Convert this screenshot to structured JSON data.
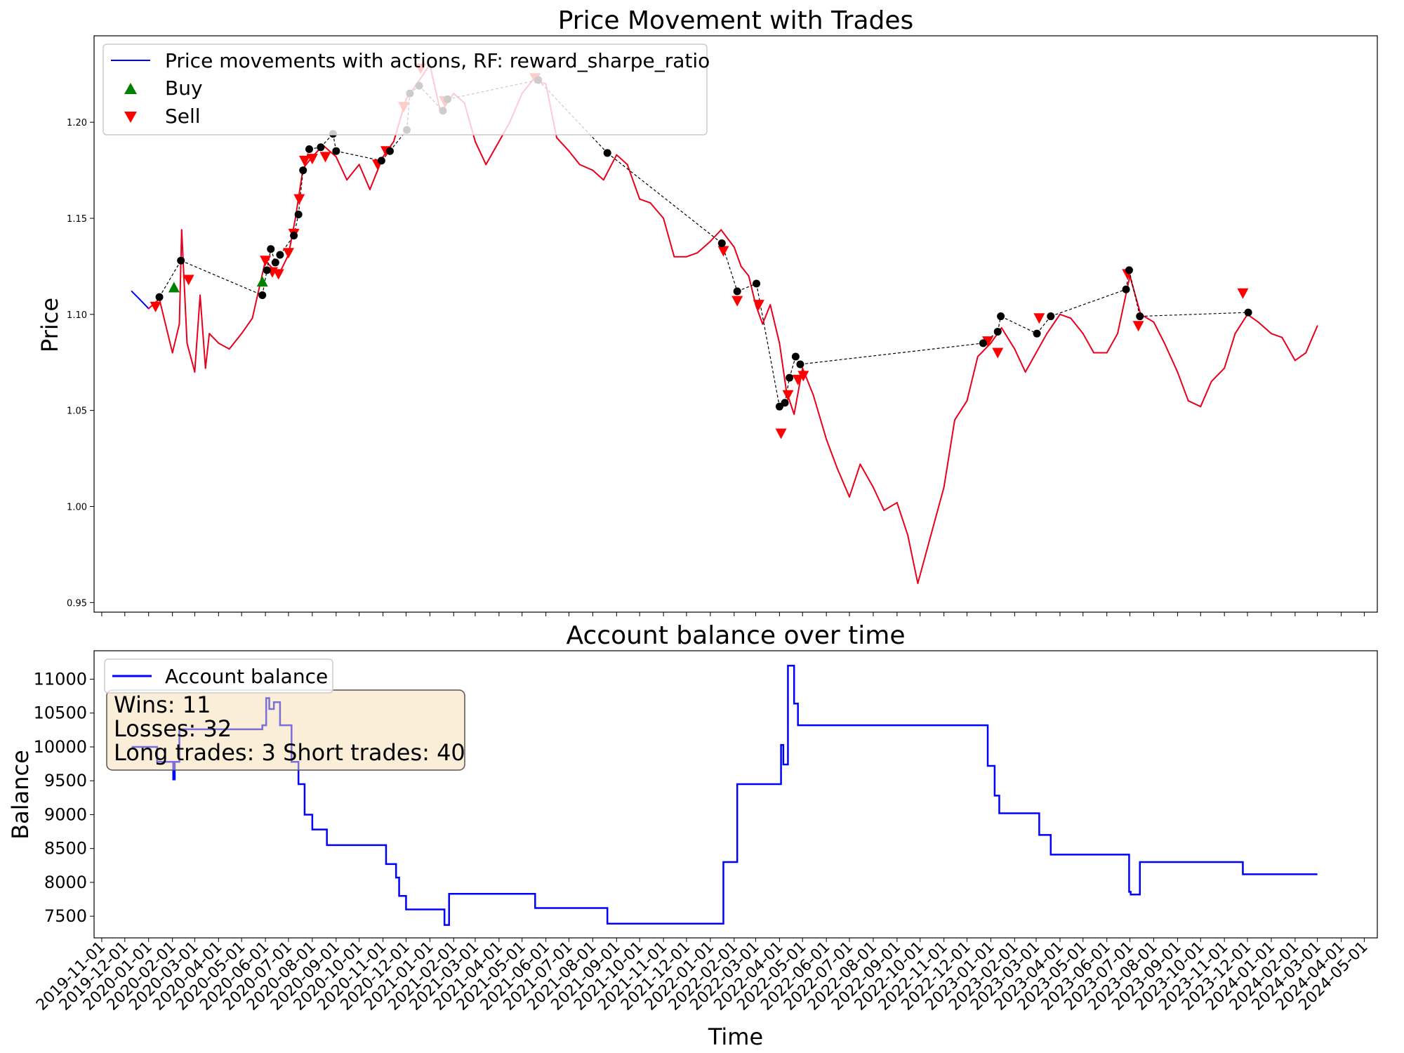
{
  "chart_data": [
    {
      "type": "line",
      "title": "Price Movement with Trades",
      "xlabel": "",
      "ylabel": "Price",
      "ylim": [
        0.945,
        1.245
      ],
      "yticks": [
        "0.95",
        "1.00",
        "1.05",
        "1.10",
        "1.15",
        "1.20"
      ],
      "xlim": [
        "2019-10-22",
        "2024-05-18"
      ],
      "legend": {
        "placement": "top-left",
        "entries": [
          "Price movements with actions, RF: reward_sharpe_ratio",
          "Buy",
          "Sell"
        ]
      },
      "colors": {
        "price_hold": "#0000ff",
        "price_action": "#e8001c",
        "buy": "#008000",
        "sell": "#ff0000",
        "exit": "#000000",
        "trade_link": "#000000"
      },
      "series": [
        {
          "name": "Price movements with actions, RF: reward_sharpe_ratio",
          "x": [
            "2019-12-10",
            "2019-12-20",
            "2020-01-01",
            "2020-01-15",
            "2020-02-01",
            "2020-02-10",
            "2020-02-13",
            "2020-02-20",
            "2020-03-01",
            "2020-03-08",
            "2020-03-15",
            "2020-03-20",
            "2020-04-01",
            "2020-04-15",
            "2020-05-01",
            "2020-05-15",
            "2020-06-01",
            "2020-06-10",
            "2020-06-20",
            "2020-07-01",
            "2020-07-10",
            "2020-07-20",
            "2020-08-01",
            "2020-08-15",
            "2020-09-01",
            "2020-09-15",
            "2020-10-01",
            "2020-10-15",
            "2020-11-01",
            "2020-11-15",
            "2020-12-01",
            "2020-12-15",
            "2021-01-01",
            "2021-01-15",
            "2021-02-01",
            "2021-02-15",
            "2021-03-01",
            "2021-03-15",
            "2021-04-01",
            "2021-04-15",
            "2021-05-01",
            "2021-05-15",
            "2021-06-01",
            "2021-06-15",
            "2021-07-01",
            "2021-07-15",
            "2021-08-01",
            "2021-08-15",
            "2021-09-01",
            "2021-09-15",
            "2021-10-01",
            "2021-10-15",
            "2021-11-01",
            "2021-11-15",
            "2021-12-01",
            "2021-12-15",
            "2022-01-01",
            "2022-01-15",
            "2022-02-01",
            "2022-02-10",
            "2022-02-20",
            "2022-03-01",
            "2022-03-10",
            "2022-03-20",
            "2022-04-01",
            "2022-04-10",
            "2022-04-20",
            "2022-05-01",
            "2022-05-15",
            "2022-06-01",
            "2022-06-15",
            "2022-07-01",
            "2022-07-15",
            "2022-08-01",
            "2022-08-15",
            "2022-09-01",
            "2022-09-15",
            "2022-09-28",
            "2022-10-15",
            "2022-11-01",
            "2022-11-15",
            "2022-12-01",
            "2022-12-15",
            "2023-01-01",
            "2023-01-15",
            "2023-02-01",
            "2023-02-15",
            "2023-03-01",
            "2023-03-15",
            "2023-04-01",
            "2023-04-15",
            "2023-05-01",
            "2023-05-15",
            "2023-06-01",
            "2023-06-15",
            "2023-07-01",
            "2023-07-15",
            "2023-08-01",
            "2023-08-15",
            "2023-09-01",
            "2023-09-15",
            "2023-10-01",
            "2023-10-15",
            "2023-11-01",
            "2023-11-15",
            "2023-12-01",
            "2023-12-15",
            "2024-01-01",
            "2024-01-15",
            "2024-02-01",
            "2024-02-15",
            "2024-03-01"
          ],
          "y": [
            1.112,
            1.108,
            1.103,
            1.108,
            1.08,
            1.095,
            1.144,
            1.085,
            1.07,
            1.11,
            1.072,
            1.09,
            1.085,
            1.082,
            1.09,
            1.098,
            1.128,
            1.124,
            1.122,
            1.131,
            1.15,
            1.176,
            1.182,
            1.188,
            1.182,
            1.17,
            1.178,
            1.165,
            1.182,
            1.19,
            1.212,
            1.22,
            1.23,
            1.205,
            1.215,
            1.21,
            1.19,
            1.178,
            1.19,
            1.2,
            1.215,
            1.222,
            1.22,
            1.192,
            1.185,
            1.178,
            1.175,
            1.17,
            1.183,
            1.178,
            1.16,
            1.158,
            1.15,
            1.13,
            1.13,
            1.132,
            1.138,
            1.144,
            1.135,
            1.125,
            1.12,
            1.105,
            1.095,
            1.105,
            1.085,
            1.06,
            1.048,
            1.072,
            1.058,
            1.035,
            1.02,
            1.005,
            1.022,
            1.01,
            0.998,
            1.002,
            0.985,
            0.96,
            0.985,
            1.01,
            1.045,
            1.055,
            1.078,
            1.085,
            1.093,
            1.082,
            1.07,
            1.08,
            1.09,
            1.1,
            1.098,
            1.09,
            1.08,
            1.08,
            1.09,
            1.12,
            1.1,
            1.096,
            1.085,
            1.07,
            1.055,
            1.052,
            1.065,
            1.072,
            1.09,
            1.1,
            1.096,
            1.09,
            1.088,
            1.076,
            1.08,
            1.094
          ]
        }
      ],
      "buy_markers": [
        {
          "x": "2020-02-03",
          "y": 1.114
        },
        {
          "x": "2020-05-28",
          "y": 1.117
        }
      ],
      "sell_markers": [
        {
          "x": "2020-01-10",
          "y": 1.104
        },
        {
          "x": "2020-02-22",
          "y": 1.118
        },
        {
          "x": "2020-06-01",
          "y": 1.128
        },
        {
          "x": "2020-06-10",
          "y": 1.122
        },
        {
          "x": "2020-06-18",
          "y": 1.121
        },
        {
          "x": "2020-07-01",
          "y": 1.132
        },
        {
          "x": "2020-07-08",
          "y": 1.142
        },
        {
          "x": "2020-07-15",
          "y": 1.16
        },
        {
          "x": "2020-07-22",
          "y": 1.18
        },
        {
          "x": "2020-08-01",
          "y": 1.181
        },
        {
          "x": "2020-08-18",
          "y": 1.182
        },
        {
          "x": "2020-10-25",
          "y": 1.178
        },
        {
          "x": "2020-11-05",
          "y": 1.185
        },
        {
          "x": "2020-11-28",
          "y": 1.208
        },
        {
          "x": "2020-12-20",
          "y": 1.228
        },
        {
          "x": "2021-01-20",
          "y": 1.211
        },
        {
          "x": "2021-05-18",
          "y": 1.223
        },
        {
          "x": "2022-01-18",
          "y": 1.133
        },
        {
          "x": "2022-02-05",
          "y": 1.107
        },
        {
          "x": "2022-03-05",
          "y": 1.105
        },
        {
          "x": "2022-04-03",
          "y": 1.038
        },
        {
          "x": "2022-04-12",
          "y": 1.058
        },
        {
          "x": "2022-04-25",
          "y": 1.066
        },
        {
          "x": "2022-05-02",
          "y": 1.068
        },
        {
          "x": "2022-12-28",
          "y": 1.086
        },
        {
          "x": "2023-01-10",
          "y": 1.08
        },
        {
          "x": "2023-03-05",
          "y": 1.098
        },
        {
          "x": "2023-06-28",
          "y": 1.121
        },
        {
          "x": "2023-07-12",
          "y": 1.094
        },
        {
          "x": "2023-11-25",
          "y": 1.111
        }
      ],
      "exit_markers": [
        {
          "x": "2020-01-15",
          "y": 1.109
        },
        {
          "x": "2020-02-12",
          "y": 1.128
        },
        {
          "x": "2020-05-28",
          "y": 1.11
        },
        {
          "x": "2020-06-03",
          "y": 1.123
        },
        {
          "x": "2020-06-08",
          "y": 1.134
        },
        {
          "x": "2020-06-14",
          "y": 1.127
        },
        {
          "x": "2020-06-20",
          "y": 1.131
        },
        {
          "x": "2020-07-08",
          "y": 1.141
        },
        {
          "x": "2020-07-14",
          "y": 1.152
        },
        {
          "x": "2020-07-20",
          "y": 1.175
        },
        {
          "x": "2020-07-28",
          "y": 1.186
        },
        {
          "x": "2020-08-12",
          "y": 1.187
        },
        {
          "x": "2020-08-28",
          "y": 1.194
        },
        {
          "x": "2020-09-01",
          "y": 1.185
        },
        {
          "x": "2020-10-30",
          "y": 1.18
        },
        {
          "x": "2020-11-10",
          "y": 1.185
        },
        {
          "x": "2020-12-02",
          "y": 1.196
        },
        {
          "x": "2020-12-06",
          "y": 1.215
        },
        {
          "x": "2020-12-18",
          "y": 1.219
        },
        {
          "x": "2021-01-18",
          "y": 1.206
        },
        {
          "x": "2021-01-24",
          "y": 1.212
        },
        {
          "x": "2021-05-22",
          "y": 1.222
        },
        {
          "x": "2021-08-20",
          "y": 1.184
        },
        {
          "x": "2022-01-16",
          "y": 1.137
        },
        {
          "x": "2022-02-05",
          "y": 1.112
        },
        {
          "x": "2022-03-02",
          "y": 1.116
        },
        {
          "x": "2022-04-01",
          "y": 1.052
        },
        {
          "x": "2022-04-08",
          "y": 1.054
        },
        {
          "x": "2022-04-14",
          "y": 1.067
        },
        {
          "x": "2022-04-22",
          "y": 1.078
        },
        {
          "x": "2022-04-28",
          "y": 1.074
        },
        {
          "x": "2022-12-22",
          "y": 1.085
        },
        {
          "x": "2023-01-10",
          "y": 1.091
        },
        {
          "x": "2023-01-14",
          "y": 1.099
        },
        {
          "x": "2023-03-02",
          "y": 1.09
        },
        {
          "x": "2023-03-20",
          "y": 1.099
        },
        {
          "x": "2023-06-26",
          "y": 1.113
        },
        {
          "x": "2023-06-30",
          "y": 1.123
        },
        {
          "x": "2023-07-14",
          "y": 1.099
        },
        {
          "x": "2023-12-02",
          "y": 1.101
        }
      ]
    },
    {
      "type": "line",
      "title": "Account balance over time",
      "xlabel": "Time",
      "ylabel": "Balance",
      "ylim": [
        7180,
        11420
      ],
      "yticks": [
        "7500",
        "8000",
        "8500",
        "9000",
        "9500",
        "10000",
        "10500",
        "11000"
      ],
      "xlim": [
        "2019-10-22",
        "2024-05-18"
      ],
      "xticks": [
        "2019-11-01",
        "2019-12-01",
        "2020-01-01",
        "2020-02-01",
        "2020-03-01",
        "2020-04-01",
        "2020-05-01",
        "2020-06-01",
        "2020-07-01",
        "2020-08-01",
        "2020-09-01",
        "2020-10-01",
        "2020-11-01",
        "2020-12-01",
        "2021-01-01",
        "2021-02-01",
        "2021-03-01",
        "2021-04-01",
        "2021-05-01",
        "2021-06-01",
        "2021-07-01",
        "2021-08-01",
        "2021-09-01",
        "2021-10-01",
        "2021-11-01",
        "2021-12-01",
        "2022-01-01",
        "2022-02-01",
        "2022-03-01",
        "2022-04-01",
        "2022-05-01",
        "2022-06-01",
        "2022-07-01",
        "2022-08-01",
        "2022-09-01",
        "2022-10-01",
        "2022-11-01",
        "2022-12-01",
        "2023-01-01",
        "2023-02-01",
        "2023-03-01",
        "2023-04-01",
        "2023-05-01",
        "2023-06-01",
        "2023-07-01",
        "2023-08-01",
        "2023-09-01",
        "2023-10-01",
        "2023-11-01",
        "2023-12-01",
        "2024-01-01",
        "2024-02-01",
        "2024-03-01",
        "2024-04-01",
        "2024-05-01"
      ],
      "legend": {
        "placement": "top-left",
        "entries": [
          "Account balance"
        ]
      },
      "colors": {
        "balance": "#0000ff",
        "stats_box_fill": "#f5deb3",
        "stats_box_edge": "#555555"
      },
      "series": [
        {
          "name": "Account balance",
          "x": [
            "2019-12-10",
            "2020-01-12",
            "2020-01-14",
            "2020-02-02",
            "2020-02-04",
            "2020-02-10",
            "2020-05-28",
            "2020-06-02",
            "2020-06-06",
            "2020-06-12",
            "2020-06-20",
            "2020-07-05",
            "2020-07-14",
            "2020-07-22",
            "2020-08-01",
            "2020-08-20",
            "2020-11-05",
            "2020-11-18",
            "2020-11-22",
            "2020-12-01",
            "2021-01-20",
            "2021-01-26",
            "2021-05-18",
            "2021-08-20",
            "2022-01-18",
            "2022-02-05",
            "2022-04-03",
            "2022-04-06",
            "2022-04-12",
            "2022-04-20",
            "2022-04-25",
            "2022-12-28",
            "2023-01-06",
            "2023-01-12",
            "2023-03-05",
            "2023-03-20",
            "2023-06-30",
            "2023-07-02",
            "2023-07-14",
            "2023-11-25",
            "2024-03-01"
          ],
          "y": [
            10000,
            9780,
            9780,
            9520,
            9780,
            10260,
            10320,
            10720,
            10560,
            10660,
            10320,
            9780,
            9450,
            9000,
            8780,
            8550,
            8270,
            8070,
            7800,
            7600,
            7370,
            7830,
            7620,
            7390,
            8300,
            9450,
            10030,
            9740,
            11200,
            10640,
            10320,
            9720,
            9280,
            9020,
            8700,
            8410,
            7860,
            7820,
            8300,
            8120,
            8120
          ]
        }
      ],
      "stats": {
        "wins": "Wins: 11",
        "losses": "Losses: 32",
        "trades": "Long trades: 3 Short trades: 40"
      }
    }
  ]
}
